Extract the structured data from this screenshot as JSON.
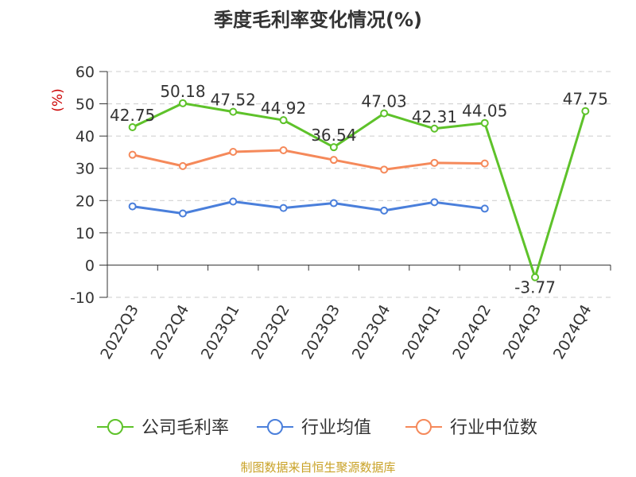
{
  "chart_data": {
    "type": "line",
    "title": "季度毛利率变化情况(%)",
    "ylabel": "(%)",
    "xlabel": "",
    "ylim": [
      -10,
      60
    ],
    "yticks": [
      -10,
      0,
      10,
      20,
      30,
      40,
      50,
      60
    ],
    "grid": true,
    "legend_position": "bottom",
    "categories": [
      "2022Q3",
      "2022Q4",
      "2023Q1",
      "2023Q2",
      "2023Q3",
      "2023Q4",
      "2024Q1",
      "2024Q2",
      "2024Q3",
      "2024Q4"
    ],
    "series": [
      {
        "name": "公司毛利率",
        "color": "#5ec22a",
        "values": [
          42.75,
          50.18,
          47.52,
          44.92,
          36.54,
          47.03,
          42.31,
          44.05,
          -3.77,
          47.75
        ],
        "labels": [
          "42.75",
          "50.18",
          "47.52",
          "44.92",
          "36.54",
          "47.03",
          "42.31",
          "44.05",
          "-3.77",
          "47.75"
        ]
      },
      {
        "name": "行业均值",
        "color": "#4a7fdb",
        "values": [
          18.2,
          16.0,
          19.7,
          17.7,
          19.2,
          16.9,
          19.5,
          17.5,
          null,
          null
        ]
      },
      {
        "name": "行业中位数",
        "color": "#f5895a",
        "values": [
          34.2,
          30.7,
          35.1,
          35.6,
          32.6,
          29.6,
          31.7,
          31.5,
          null,
          null
        ]
      }
    ],
    "source": "制图数据来自恒生聚源数据库"
  }
}
